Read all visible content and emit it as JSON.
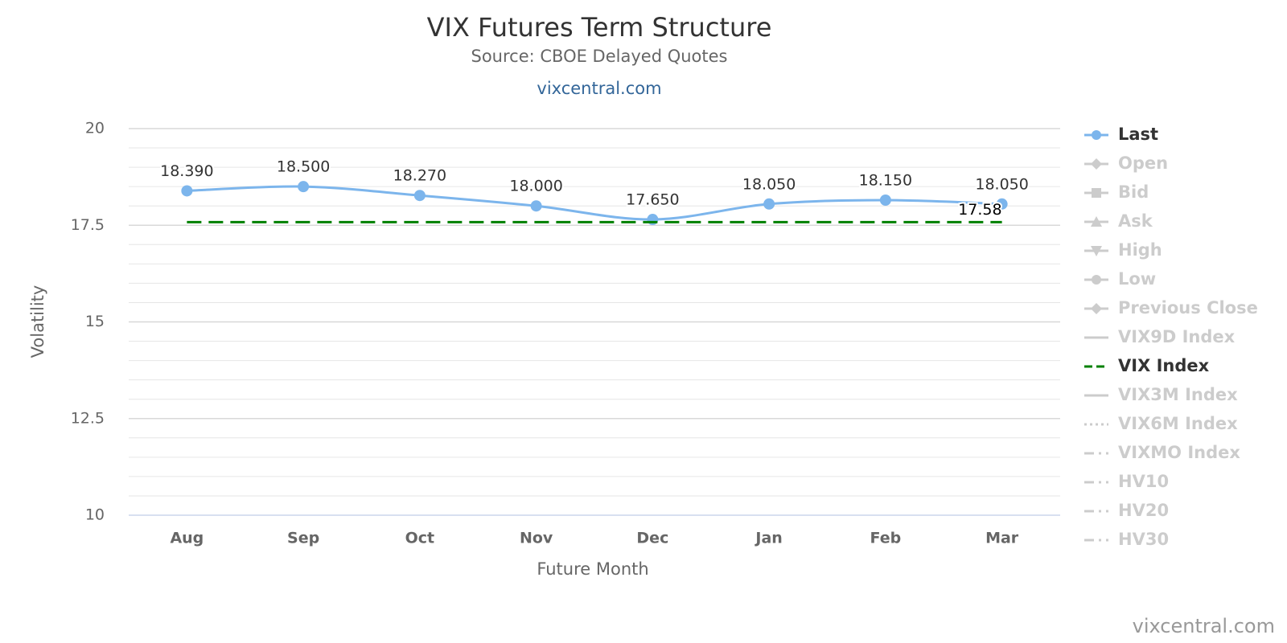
{
  "chart_data": {
    "type": "line",
    "title": "VIX Futures Term Structure",
    "subtitle": "Source: CBOE Delayed Quotes",
    "link": "vixcentral.com",
    "credits": "vixcentral.com",
    "xlabel": "Future Month",
    "ylabel": "Volatility",
    "categories": [
      "Aug",
      "Sep",
      "Oct",
      "Nov",
      "Dec",
      "Jan",
      "Feb",
      "Mar"
    ],
    "ylim": [
      10,
      20
    ],
    "yticks": [
      10,
      12.5,
      15,
      17.5,
      20
    ],
    "minor_yticks": [
      10.5,
      11,
      11.5,
      12,
      13,
      13.5,
      14,
      14.5,
      15.5,
      16,
      16.5,
      17,
      18,
      18.5,
      19,
      19.5
    ],
    "grid": true,
    "legend": "right",
    "series": [
      {
        "name": "Last",
        "color": "#7cb5ec",
        "symbol": "circle",
        "smooth": true,
        "values": [
          18.39,
          18.5,
          18.27,
          18.0,
          17.65,
          18.05,
          18.15,
          18.05
        ],
        "value_labels": [
          "18.390",
          "18.500",
          "18.270",
          "18.000",
          "17.650",
          "18.050",
          "18.150",
          "18.050"
        ]
      },
      {
        "name": "Open",
        "visible": false,
        "symbol": "diamond"
      },
      {
        "name": "Bid",
        "visible": false,
        "symbol": "square"
      },
      {
        "name": "Ask",
        "visible": false,
        "symbol": "triangle"
      },
      {
        "name": "High",
        "visible": false,
        "symbol": "triangle-down"
      },
      {
        "name": "Low",
        "visible": false,
        "symbol": "circle"
      },
      {
        "name": "Previous Close",
        "visible": false,
        "symbol": "diamond"
      },
      {
        "name": "VIX9D Index",
        "visible": false,
        "dash": "solid"
      },
      {
        "name": "VIX Index",
        "color": "#008000",
        "dash": "dashed",
        "label_last": true,
        "values": [
          17.58,
          17.58,
          17.58,
          17.58,
          17.58,
          17.58,
          17.58,
          17.58
        ]
      },
      {
        "name": "VIX3M Index",
        "visible": false,
        "dash": "solid"
      },
      {
        "name": "VIX6M Index",
        "visible": false,
        "dash": "dotted"
      },
      {
        "name": "VIXMO Index",
        "visible": false,
        "dash": "dashdot"
      },
      {
        "name": "HV10",
        "visible": false,
        "dash": "dashdot"
      },
      {
        "name": "HV20",
        "visible": false,
        "dash": "dashdot"
      },
      {
        "name": "HV30",
        "visible": false,
        "dash": "dashdot"
      }
    ]
  }
}
